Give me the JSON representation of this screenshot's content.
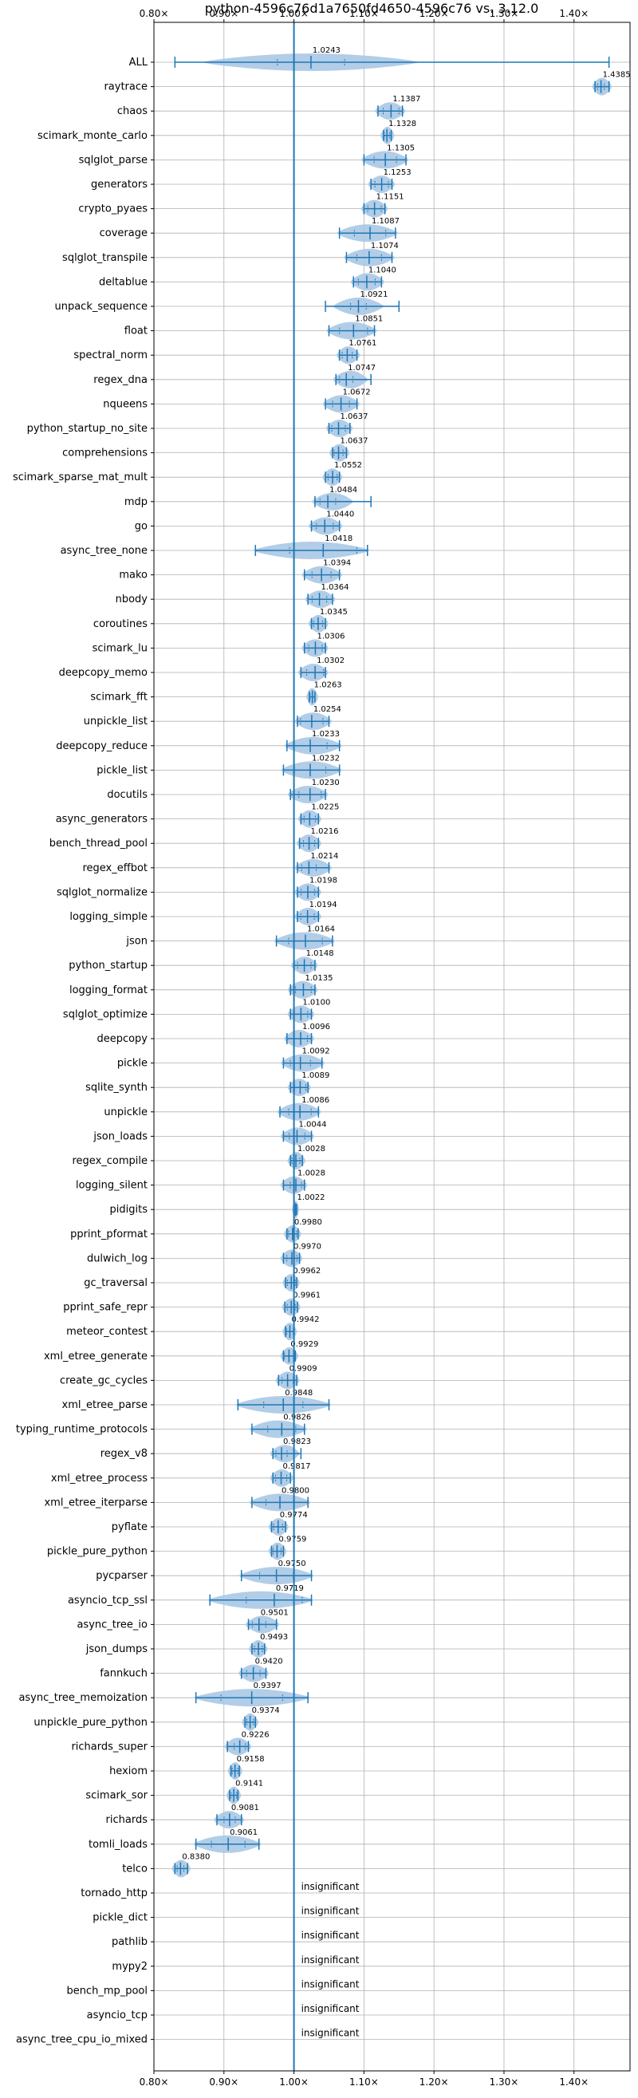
{
  "chart_data": {
    "type": "violin",
    "title": "python-4596c76d1a7650fd4650-4596c76 vs. 3.12.0",
    "x_ticks": [
      {
        "value": 0.8,
        "label": "0.80×"
      },
      {
        "value": 0.9,
        "label": "0.90×"
      },
      {
        "value": 1.0,
        "label": "1.00×"
      },
      {
        "value": 1.1,
        "label": "1.10×"
      },
      {
        "value": 1.2,
        "label": "1.20×"
      },
      {
        "value": 1.3,
        "label": "1.30×"
      },
      {
        "value": 1.4,
        "label": "1.40×"
      }
    ],
    "xlim": [
      0.8,
      1.48
    ],
    "reference_line": 1.0,
    "grid": true,
    "colors": {
      "line": "#1f77b4",
      "violin": "#aac8e4",
      "grid": "#b0b0b0",
      "text": "#000000"
    },
    "insignificant_label": "insignificant",
    "benchmarks": [
      {
        "name": "ALL",
        "label": "1.0243",
        "mean": 1.0243,
        "min": 0.83,
        "max": 1.45,
        "spread": 0.06
      },
      {
        "name": "raytrace",
        "label": "1.4385",
        "mean": 1.4385,
        "min": 1.43,
        "max": 1.45,
        "spread": 0.006
      },
      {
        "name": "chaos",
        "label": "1.1387",
        "mean": 1.1387,
        "min": 1.12,
        "max": 1.155,
        "spread": 0.014
      },
      {
        "name": "scimark_monte_carlo",
        "label": "1.1328",
        "mean": 1.1328,
        "min": 1.128,
        "max": 1.139,
        "spread": 0.005
      },
      {
        "name": "sqlglot_parse",
        "label": "1.1305",
        "mean": 1.1305,
        "min": 1.1,
        "max": 1.16,
        "spread": 0.02
      },
      {
        "name": "generators",
        "label": "1.1253",
        "mean": 1.1253,
        "min": 1.11,
        "max": 1.14,
        "spread": 0.012
      },
      {
        "name": "crypto_pyaes",
        "label": "1.1151",
        "mean": 1.1151,
        "min": 1.1,
        "max": 1.13,
        "spread": 0.012
      },
      {
        "name": "coverage",
        "label": "1.1087",
        "mean": 1.1087,
        "min": 1.065,
        "max": 1.145,
        "spread": 0.028
      },
      {
        "name": "sqlglot_transpile",
        "label": "1.1074",
        "mean": 1.1074,
        "min": 1.075,
        "max": 1.14,
        "spread": 0.022
      },
      {
        "name": "deltablue",
        "label": "1.1040",
        "mean": 1.104,
        "min": 1.085,
        "max": 1.125,
        "spread": 0.015
      },
      {
        "name": "unpack_sequence",
        "label": "1.0921",
        "mean": 1.0921,
        "min": 1.045,
        "max": 1.15,
        "spread": 0.014
      },
      {
        "name": "float",
        "label": "1.0851",
        "mean": 1.0851,
        "min": 1.05,
        "max": 1.115,
        "spread": 0.025
      },
      {
        "name": "spectral_norm",
        "label": "1.0761",
        "mean": 1.0761,
        "min": 1.065,
        "max": 1.09,
        "spread": 0.009
      },
      {
        "name": "regex_dna",
        "label": "1.0747",
        "mean": 1.0747,
        "min": 1.06,
        "max": 1.11,
        "spread": 0.012
      },
      {
        "name": "nqueens",
        "label": "1.0672",
        "mean": 1.0672,
        "min": 1.045,
        "max": 1.09,
        "spread": 0.015
      },
      {
        "name": "python_startup_no_site",
        "label": "1.0637",
        "mean": 1.0637,
        "min": 1.05,
        "max": 1.08,
        "spread": 0.012
      },
      {
        "name": "comprehensions",
        "label": "1.0637",
        "mean": 1.0637,
        "min": 1.055,
        "max": 1.075,
        "spread": 0.008
      },
      {
        "name": "scimark_sparse_mat_mult",
        "label": "1.0552",
        "mean": 1.0552,
        "min": 1.045,
        "max": 1.065,
        "spread": 0.008
      },
      {
        "name": "mdp",
        "label": "1.0484",
        "mean": 1.0484,
        "min": 1.03,
        "max": 1.11,
        "spread": 0.014
      },
      {
        "name": "go",
        "label": "1.0440",
        "mean": 1.044,
        "min": 1.025,
        "max": 1.065,
        "spread": 0.015
      },
      {
        "name": "async_tree_none",
        "label": "1.0418",
        "mean": 1.0418,
        "min": 0.945,
        "max": 1.105,
        "spread": 0.06
      },
      {
        "name": "mako",
        "label": "1.0394",
        "mean": 1.0394,
        "min": 1.015,
        "max": 1.065,
        "spread": 0.017
      },
      {
        "name": "nbody",
        "label": "1.0364",
        "mean": 1.0364,
        "min": 1.02,
        "max": 1.055,
        "spread": 0.013
      },
      {
        "name": "coroutines",
        "label": "1.0345",
        "mean": 1.0345,
        "min": 1.025,
        "max": 1.045,
        "spread": 0.008
      },
      {
        "name": "scimark_lu",
        "label": "1.0306",
        "mean": 1.0306,
        "min": 1.015,
        "max": 1.045,
        "spread": 0.012
      },
      {
        "name": "deepcopy_memo",
        "label": "1.0302",
        "mean": 1.0302,
        "min": 1.01,
        "max": 1.045,
        "spread": 0.015
      },
      {
        "name": "scimark_fft",
        "label": "1.0263",
        "mean": 1.0263,
        "min": 1.022,
        "max": 1.03,
        "spread": 0.004
      },
      {
        "name": "unpickle_list",
        "label": "1.0254",
        "mean": 1.0254,
        "min": 1.005,
        "max": 1.05,
        "spread": 0.02
      },
      {
        "name": "deepcopy_reduce",
        "label": "1.0233",
        "mean": 1.0233,
        "min": 0.99,
        "max": 1.065,
        "spread": 0.03
      },
      {
        "name": "pickle_list",
        "label": "1.0232",
        "mean": 1.0232,
        "min": 0.985,
        "max": 1.065,
        "spread": 0.028
      },
      {
        "name": "docutils",
        "label": "1.0230",
        "mean": 1.023,
        "min": 0.995,
        "max": 1.045,
        "spread": 0.02
      },
      {
        "name": "async_generators",
        "label": "1.0225",
        "mean": 1.0225,
        "min": 1.01,
        "max": 1.035,
        "spread": 0.01
      },
      {
        "name": "bench_thread_pool",
        "label": "1.0216",
        "mean": 1.0216,
        "min": 1.008,
        "max": 1.035,
        "spread": 0.01
      },
      {
        "name": "regex_effbot",
        "label": "1.0214",
        "mean": 1.0214,
        "min": 1.005,
        "max": 1.05,
        "spread": 0.013
      },
      {
        "name": "sqlglot_normalize",
        "label": "1.0198",
        "mean": 1.0198,
        "min": 1.005,
        "max": 1.035,
        "spread": 0.012
      },
      {
        "name": "logging_simple",
        "label": "1.0194",
        "mean": 1.0194,
        "min": 1.005,
        "max": 1.035,
        "spread": 0.012
      },
      {
        "name": "json",
        "label": "1.0164",
        "mean": 1.0164,
        "min": 0.975,
        "max": 1.055,
        "spread": 0.03
      },
      {
        "name": "python_startup",
        "label": "1.0148",
        "mean": 1.0148,
        "min": 1.0,
        "max": 1.03,
        "spread": 0.012
      },
      {
        "name": "logging_format",
        "label": "1.0135",
        "mean": 1.0135,
        "min": 0.995,
        "max": 1.03,
        "spread": 0.014
      },
      {
        "name": "sqlglot_optimize",
        "label": "1.0100",
        "mean": 1.01,
        "min": 0.995,
        "max": 1.025,
        "spread": 0.012
      },
      {
        "name": "deepcopy",
        "label": "1.0096",
        "mean": 1.0096,
        "min": 0.99,
        "max": 1.025,
        "spread": 0.012
      },
      {
        "name": "pickle",
        "label": "1.0092",
        "mean": 1.0092,
        "min": 0.985,
        "max": 1.04,
        "spread": 0.018
      },
      {
        "name": "sqlite_synth",
        "label": "1.0089",
        "mean": 1.0089,
        "min": 0.995,
        "max": 1.02,
        "spread": 0.01
      },
      {
        "name": "unpickle",
        "label": "1.0086",
        "mean": 1.0086,
        "min": 0.98,
        "max": 1.035,
        "spread": 0.02
      },
      {
        "name": "json_loads",
        "label": "1.0044",
        "mean": 1.0044,
        "min": 0.985,
        "max": 1.025,
        "spread": 0.014
      },
      {
        "name": "regex_compile",
        "label": "1.0028",
        "mean": 1.0028,
        "min": 0.995,
        "max": 1.012,
        "spread": 0.007
      },
      {
        "name": "logging_silent",
        "label": "1.0028",
        "mean": 1.0028,
        "min": 0.985,
        "max": 1.015,
        "spread": 0.01
      },
      {
        "name": "pidigits",
        "label": "1.0022",
        "mean": 1.0022,
        "min": 1.0,
        "max": 1.004,
        "spread": 0.002
      },
      {
        "name": "pprint_pformat",
        "label": "0.9980",
        "mean": 0.998,
        "min": 0.99,
        "max": 1.006,
        "spread": 0.007
      },
      {
        "name": "dulwich_log",
        "label": "0.9970",
        "mean": 0.997,
        "min": 0.985,
        "max": 1.008,
        "spread": 0.009
      },
      {
        "name": "gc_traversal",
        "label": "0.9962",
        "mean": 0.9962,
        "min": 0.988,
        "max": 1.004,
        "spread": 0.007
      },
      {
        "name": "pprint_safe_repr",
        "label": "0.9961",
        "mean": 0.9961,
        "min": 0.987,
        "max": 1.005,
        "spread": 0.007
      },
      {
        "name": "meteor_contest",
        "label": "0.9942",
        "mean": 0.9942,
        "min": 0.988,
        "max": 1.0,
        "spread": 0.006
      },
      {
        "name": "xml_etree_generate",
        "label": "0.9929",
        "mean": 0.9929,
        "min": 0.985,
        "max": 1.002,
        "spread": 0.008
      },
      {
        "name": "create_gc_cycles",
        "label": "0.9909",
        "mean": 0.9909,
        "min": 0.978,
        "max": 1.004,
        "spread": 0.01
      },
      {
        "name": "xml_etree_parse",
        "label": "0.9848",
        "mean": 0.9848,
        "min": 0.92,
        "max": 1.05,
        "spread": 0.035
      },
      {
        "name": "typing_runtime_protocols",
        "label": "0.9826",
        "mean": 0.9826,
        "min": 0.94,
        "max": 1.015,
        "spread": 0.025
      },
      {
        "name": "regex_v8",
        "label": "0.9823",
        "mean": 0.9823,
        "min": 0.97,
        "max": 1.01,
        "spread": 0.01
      },
      {
        "name": "xml_etree_process",
        "label": "0.9817",
        "mean": 0.9817,
        "min": 0.97,
        "max": 0.995,
        "spread": 0.01
      },
      {
        "name": "xml_etree_iterparse",
        "label": "0.9800",
        "mean": 0.98,
        "min": 0.94,
        "max": 1.02,
        "spread": 0.025
      },
      {
        "name": "pyflate",
        "label": "0.9774",
        "mean": 0.9774,
        "min": 0.968,
        "max": 0.988,
        "spread": 0.008
      },
      {
        "name": "pickle_pure_python",
        "label": "0.9759",
        "mean": 0.9759,
        "min": 0.968,
        "max": 0.985,
        "spread": 0.007
      },
      {
        "name": "pycparser",
        "label": "0.9750",
        "mean": 0.975,
        "min": 0.925,
        "max": 1.025,
        "spread": 0.03
      },
      {
        "name": "asyncio_tcp_ssl",
        "label": "0.9719",
        "mean": 0.9719,
        "min": 0.88,
        "max": 1.025,
        "spread": 0.05
      },
      {
        "name": "async_tree_io",
        "label": "0.9501",
        "mean": 0.9501,
        "min": 0.935,
        "max": 0.975,
        "spread": 0.012
      },
      {
        "name": "json_dumps",
        "label": "0.9493",
        "mean": 0.9493,
        "min": 0.94,
        "max": 0.958,
        "spread": 0.007
      },
      {
        "name": "fannkuch",
        "label": "0.9420",
        "mean": 0.942,
        "min": 0.925,
        "max": 0.96,
        "spread": 0.012
      },
      {
        "name": "async_tree_memoization",
        "label": "0.9397",
        "mean": 0.9397,
        "min": 0.86,
        "max": 1.02,
        "spread": 0.055
      },
      {
        "name": "unpickle_pure_python",
        "label": "0.9374",
        "mean": 0.9374,
        "min": 0.93,
        "max": 0.945,
        "spread": 0.006
      },
      {
        "name": "richards_super",
        "label": "0.9226",
        "mean": 0.9226,
        "min": 0.905,
        "max": 0.935,
        "spread": 0.01
      },
      {
        "name": "hexiom",
        "label": "0.9158",
        "mean": 0.9158,
        "min": 0.91,
        "max": 0.922,
        "spread": 0.005
      },
      {
        "name": "scimark_sor",
        "label": "0.9141",
        "mean": 0.9141,
        "min": 0.908,
        "max": 0.92,
        "spread": 0.005
      },
      {
        "name": "richards",
        "label": "0.9081",
        "mean": 0.9081,
        "min": 0.89,
        "max": 0.925,
        "spread": 0.01
      },
      {
        "name": "tomli_loads",
        "label": "0.9061",
        "mean": 0.9061,
        "min": 0.86,
        "max": 0.95,
        "spread": 0.03
      },
      {
        "name": "telco",
        "label": "0.8380",
        "mean": 0.838,
        "min": 0.83,
        "max": 0.848,
        "spread": 0.006
      },
      {
        "name": "tornado_http",
        "label": "insignificant",
        "insignificant": true
      },
      {
        "name": "pickle_dict",
        "label": "insignificant",
        "insignificant": true
      },
      {
        "name": "pathlib",
        "label": "insignificant",
        "insignificant": true
      },
      {
        "name": "mypy2",
        "label": "insignificant",
        "insignificant": true
      },
      {
        "name": "bench_mp_pool",
        "label": "insignificant",
        "insignificant": true
      },
      {
        "name": "asyncio_tcp",
        "label": "insignificant",
        "insignificant": true
      },
      {
        "name": "async_tree_cpu_io_mixed",
        "label": "insignificant",
        "insignificant": true
      }
    ]
  }
}
